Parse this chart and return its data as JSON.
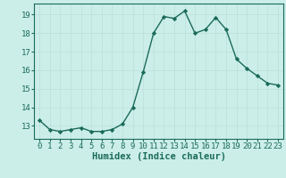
{
  "x": [
    0,
    1,
    2,
    3,
    4,
    5,
    6,
    7,
    8,
    9,
    10,
    11,
    12,
    13,
    14,
    15,
    16,
    17,
    18,
    19,
    20,
    21,
    22,
    23
  ],
  "y": [
    13.3,
    12.8,
    12.7,
    12.8,
    12.9,
    12.7,
    12.7,
    12.8,
    13.1,
    14.0,
    15.9,
    18.0,
    18.9,
    18.8,
    19.2,
    18.0,
    18.2,
    18.85,
    18.2,
    16.6,
    16.1,
    15.7,
    15.3,
    15.2
  ],
  "line_color": "#1a6b5a",
  "marker_color": "#1a6b5a",
  "bg_color": "#cceee8",
  "grid_color_minor": "#c0e8e2",
  "grid_color_major": "#b8e0da",
  "xlabel": "Humidex (Indice chaleur)",
  "xlim": [
    -0.5,
    23.5
  ],
  "ylim": [
    12.3,
    19.6
  ],
  "yticks": [
    13,
    14,
    15,
    16,
    17,
    18,
    19
  ],
  "xticks": [
    0,
    1,
    2,
    3,
    4,
    5,
    6,
    7,
    8,
    9,
    10,
    11,
    12,
    13,
    14,
    15,
    16,
    17,
    18,
    19,
    20,
    21,
    22,
    23
  ],
  "xlabel_fontsize": 7.5,
  "tick_fontsize": 6.5
}
